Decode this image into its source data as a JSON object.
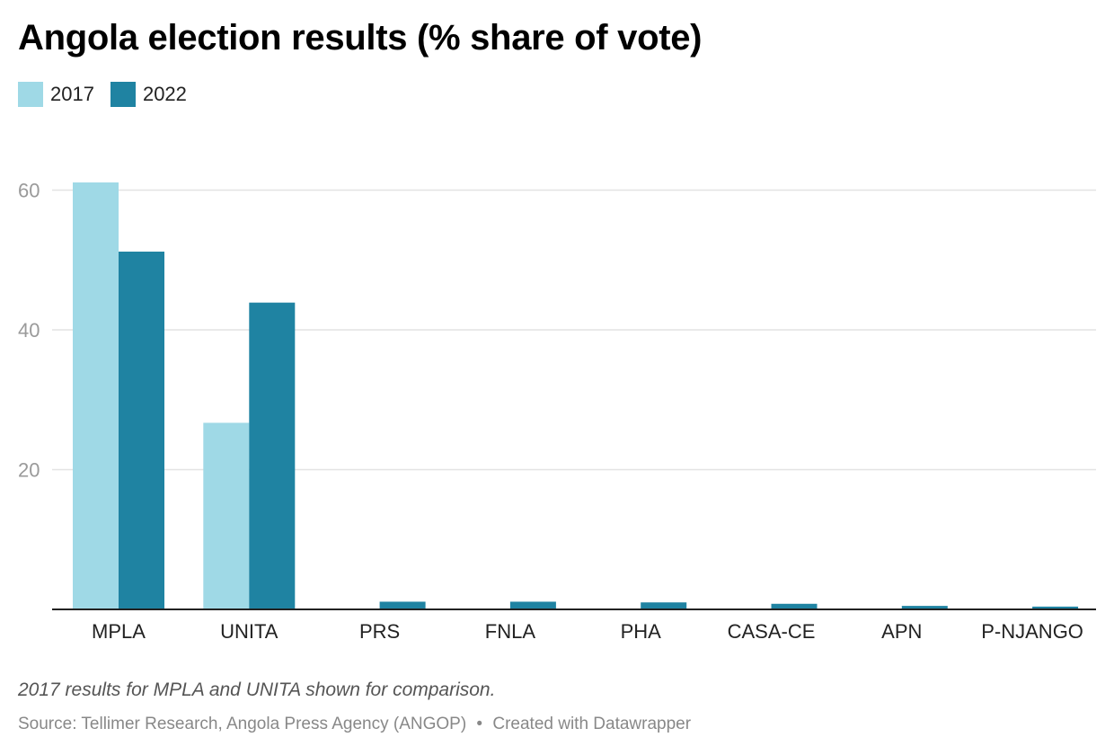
{
  "title": "Angola election results (% share of vote)",
  "legend": [
    {
      "label": "2017",
      "color": "#9fd9e6"
    },
    {
      "label": "2022",
      "color": "#1f83a2"
    }
  ],
  "footer": {
    "note": "2017 results for MPLA and UNITA shown for comparison.",
    "source": "Source: Tellimer Research, Angola Press Agency (ANGOP)",
    "separator": "•",
    "credit": "Created with Datawrapper"
  },
  "chart_data": {
    "type": "bar",
    "title": "Angola election results (% share of vote)",
    "categories": [
      "MPLA",
      "UNITA",
      "PRS",
      "FNLA",
      "PHA",
      "CASA-CE",
      "APN",
      "P-NJANGO"
    ],
    "series": [
      {
        "name": "2017",
        "color": "#9fd9e6",
        "values": [
          61.1,
          26.7,
          null,
          null,
          null,
          null,
          null,
          null
        ]
      },
      {
        "name": "2022",
        "color": "#1f83a2",
        "values": [
          51.2,
          43.9,
          1.1,
          1.1,
          1.0,
          0.8,
          0.5,
          0.4
        ]
      }
    ],
    "yticks": [
      20,
      40,
      60
    ],
    "ylim": [
      0,
      60
    ],
    "grid": true,
    "legend_position": "top-left"
  }
}
